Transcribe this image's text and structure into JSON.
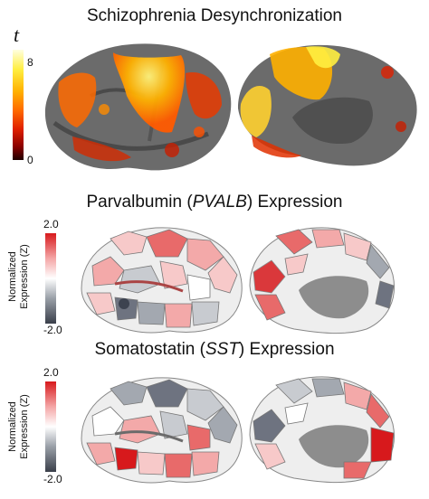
{
  "panels": [
    {
      "title": "Schizophrenia Desynchronization",
      "colorbar_symbol": "t",
      "tick_max": "8",
      "tick_min": "0",
      "colormap": [
        "#ffffe0",
        "#ffee40",
        "#ffb000",
        "#ff6a00",
        "#e02000",
        "#8a0000",
        "#200000"
      ]
    },
    {
      "title_pre": "Parvalbumin (",
      "title_gene": "PVALB",
      "title_post": ") Expression",
      "colorbar_label_line1": "Normalized",
      "colorbar_label_line2": "Expression (Z)",
      "tick_max": "2.0",
      "tick_min": "-2.0",
      "colormap": [
        "#d7191c",
        "#f4a6a6",
        "#ffffff",
        "#9aa0a8",
        "#3a3f4a"
      ]
    },
    {
      "title_pre": "Somatostatin (",
      "title_gene": "SST",
      "title_post": ") Expression",
      "colorbar_label_line1": "Normalized",
      "colorbar_label_line2": "Expression (Z)",
      "tick_max": "2.0",
      "tick_min": "-2.0",
      "colormap": [
        "#d7191c",
        "#f4a6a6",
        "#ffffff",
        "#9aa0a8",
        "#3a3f4a"
      ]
    }
  ]
}
